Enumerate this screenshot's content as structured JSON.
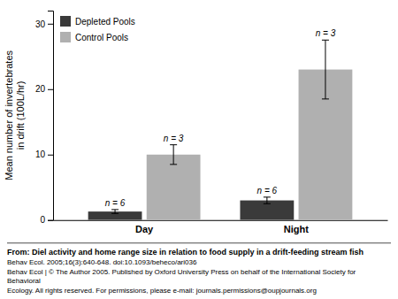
{
  "chart_data": {
    "type": "bar",
    "categories": [
      "Day",
      "Night"
    ],
    "series": [
      {
        "name": "Depleted Pools",
        "color": "#3a3a3a",
        "values": [
          1.3,
          3.0
        ],
        "errors": [
          0.3,
          0.5
        ],
        "n_labels": [
          "n = 6",
          "n = 6"
        ]
      },
      {
        "name": "Control Pools",
        "color": "#b0b0b0",
        "values": [
          10.0,
          23.0
        ],
        "errors": [
          1.5,
          4.5
        ],
        "n_labels": [
          "n = 3",
          "n = 3"
        ]
      }
    ],
    "ylabel": "Mean number of invertebrates\nin drift (100L/hr)",
    "ylim": [
      0,
      32
    ],
    "yticks": [
      0,
      10,
      20,
      30
    ],
    "legend": "upper left",
    "footer_lines": [
      "From: Diel activity and home range size in relation to food supply in a drift-feeding stream fish",
      "Behav Ecol. 2005;16(3):640-648. doi:10.1093/beheco/ari036",
      "Behav Ecol | © The Author 2005. Published by Oxford University Press on behalf of the International Society for Behavioral",
      "Ecology. All rights reserved. For permissions, please e-mail: journals.permissions@oupjournals.org"
    ]
  }
}
